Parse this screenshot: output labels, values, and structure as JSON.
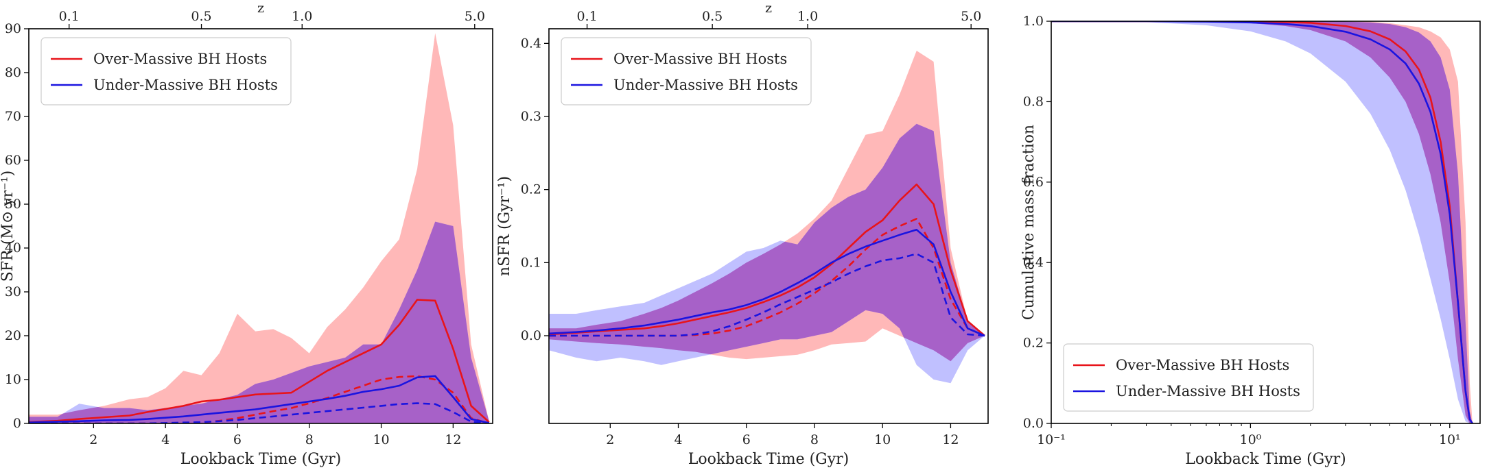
{
  "colors": {
    "over": "#e8141a",
    "under": "#1a14e0",
    "over_band": "#ff9d9d",
    "under_band": "#a8a8ff",
    "overlap_band": "#a761c8"
  },
  "chart_data": [
    {
      "type": "line",
      "title": "",
      "xlabel": "Lookback Time (Gyr)",
      "ylabel": "SFR (M⊙ yr⁻¹)",
      "top_axis_label": "z",
      "xlim": [
        0.2,
        13.1
      ],
      "ylim": [
        0,
        90
      ],
      "xticks": [
        2,
        4,
        6,
        8,
        10,
        12
      ],
      "xtick_labels": [
        "2",
        "4",
        "6",
        "8",
        "10",
        "12"
      ],
      "yticks": [
        0,
        10,
        20,
        30,
        40,
        50,
        60,
        70,
        80,
        90
      ],
      "ytick_labels": [
        "0",
        "10",
        "20",
        "30",
        "40",
        "50",
        "60",
        "70",
        "80",
        "90"
      ],
      "top_ticks": [
        1.32,
        5.0,
        7.8,
        12.6
      ],
      "top_tick_labels": [
        "0.1",
        "0.5",
        "1.0",
        "5.0"
      ],
      "legend": [
        "Over-Massive BH Hosts",
        "Under-Massive BH Hosts"
      ],
      "legend_position": "top-left",
      "x": [
        0.2,
        1.0,
        1.6,
        2.3,
        3.0,
        3.5,
        4.0,
        4.5,
        5.0,
        5.5,
        6.0,
        6.5,
        7.0,
        7.5,
        8.0,
        8.5,
        9.0,
        9.5,
        10.0,
        10.5,
        11.0,
        11.5,
        12.0,
        12.5,
        13.0
      ],
      "series": [
        {
          "name": "Over-Massive BH Hosts",
          "style": "solid",
          "color_key": "over",
          "values": [
            0.3,
            0.6,
            1.0,
            1.4,
            1.8,
            2.6,
            3.3,
            4.0,
            5.0,
            5.4,
            6.0,
            6.6,
            6.8,
            7.0,
            9.5,
            12.0,
            14.0,
            16.0,
            18.0,
            22.5,
            28.2,
            28.0,
            17.0,
            4.0,
            0.3
          ]
        },
        {
          "name": "Over-Massive median (dashed)",
          "style": "dashed",
          "color_key": "over",
          "values": [
            0.0,
            0.0,
            0.0,
            0.0,
            0.0,
            0.0,
            0.0,
            0.0,
            0.2,
            0.6,
            1.2,
            2.0,
            2.8,
            3.5,
            4.6,
            5.8,
            7.2,
            8.6,
            10.0,
            10.6,
            10.8,
            10.0,
            7.0,
            1.2,
            0.0
          ]
        },
        {
          "name": "Under-Massive BH Hosts",
          "style": "solid",
          "color_key": "under",
          "values": [
            0.2,
            0.4,
            0.5,
            0.7,
            0.8,
            1.0,
            1.3,
            1.6,
            2.0,
            2.4,
            2.8,
            3.2,
            3.8,
            4.4,
            5.0,
            5.6,
            6.3,
            7.2,
            7.8,
            8.6,
            10.5,
            10.8,
            6.0,
            1.0,
            0.1
          ]
        },
        {
          "name": "Under-Massive median (dashed)",
          "style": "dashed",
          "color_key": "under",
          "values": [
            0.0,
            0.0,
            0.0,
            0.0,
            0.0,
            0.0,
            0.1,
            0.2,
            0.3,
            0.5,
            0.8,
            1.2,
            1.6,
            2.0,
            2.4,
            2.8,
            3.2,
            3.6,
            4.0,
            4.4,
            4.6,
            4.4,
            2.6,
            0.4,
            0.0
          ]
        }
      ],
      "bands": [
        {
          "name": "Over-Massive BH Hosts range",
          "color_key": "over_band",
          "upper": [
            2.0,
            2.0,
            3.0,
            4.0,
            5.5,
            6.0,
            8.0,
            12.0,
            11.0,
            16.0,
            25.0,
            21.0,
            21.5,
            19.5,
            16.0,
            22.0,
            26.0,
            31.0,
            37.0,
            42.0,
            58.0,
            89.0,
            68.0,
            18.0,
            0.5
          ],
          "lower": [
            0.0,
            0.0,
            0.0,
            0.0,
            0.0,
            0.0,
            0.0,
            0.0,
            0.0,
            0.0,
            0.0,
            0.0,
            0.0,
            0.0,
            0.0,
            0.0,
            0.0,
            0.0,
            0.0,
            0.0,
            0.0,
            0.0,
            0.0,
            0.0,
            0.0
          ]
        },
        {
          "name": "Under-Massive BH Hosts range",
          "color_key": "under_band",
          "upper": [
            1.5,
            1.5,
            4.5,
            3.5,
            3.5,
            3.0,
            3.5,
            4.0,
            4.5,
            5.5,
            6.5,
            9.0,
            10.0,
            11.5,
            13.0,
            14.0,
            15.0,
            18.0,
            18.0,
            26.0,
            35.0,
            46.0,
            45.0,
            15.0,
            0.5
          ],
          "lower": [
            0.0,
            0.0,
            0.0,
            0.0,
            0.0,
            0.0,
            0.0,
            0.0,
            0.0,
            0.0,
            0.0,
            0.0,
            0.0,
            0.0,
            0.0,
            0.0,
            0.0,
            0.0,
            0.0,
            0.0,
            0.0,
            0.0,
            0.0,
            0.0,
            0.0
          ]
        }
      ]
    },
    {
      "type": "line",
      "title": "",
      "xlabel": "Lookback Time (Gyr)",
      "ylabel": "nSFR (Gyr⁻¹)",
      "top_axis_label": "z",
      "xlim": [
        0.2,
        13.1
      ],
      "ylim": [
        -0.12,
        0.42
      ],
      "xticks": [
        2,
        4,
        6,
        8,
        10,
        12
      ],
      "xtick_labels": [
        "2",
        "4",
        "6",
        "8",
        "10",
        "12"
      ],
      "yticks": [
        0.0,
        0.1,
        0.2,
        0.3,
        0.4
      ],
      "ytick_labels": [
        "0.0",
        "0.1",
        "0.2",
        "0.3",
        "0.4"
      ],
      "top_ticks": [
        1.32,
        5.0,
        7.8,
        12.6
      ],
      "top_tick_labels": [
        "0.1",
        "0.5",
        "1.0",
        "5.0"
      ],
      "legend": [
        "Over-Massive BH Hosts",
        "Under-Massive BH Hosts"
      ],
      "legend_position": "top-left",
      "x": [
        0.2,
        1.0,
        1.6,
        2.3,
        3.0,
        3.5,
        4.0,
        4.5,
        5.0,
        5.5,
        6.0,
        6.5,
        7.0,
        7.5,
        8.0,
        8.5,
        9.0,
        9.5,
        10.0,
        10.5,
        11.0,
        11.5,
        12.0,
        12.5,
        13.0
      ],
      "series": [
        {
          "name": "Over-Massive BH Hosts",
          "style": "solid",
          "color_key": "over",
          "values": [
            0.002,
            0.004,
            0.006,
            0.008,
            0.01,
            0.013,
            0.017,
            0.022,
            0.027,
            0.032,
            0.038,
            0.046,
            0.055,
            0.066,
            0.08,
            0.098,
            0.12,
            0.142,
            0.158,
            0.185,
            0.207,
            0.18,
            0.09,
            0.02,
            0.0
          ]
        },
        {
          "name": "Over-Massive median (dashed)",
          "style": "dashed",
          "color_key": "over",
          "values": [
            0.0,
            0.0,
            0.0,
            0.0,
            0.0,
            0.0,
            0.0,
            0.001,
            0.003,
            0.007,
            0.013,
            0.022,
            0.032,
            0.044,
            0.058,
            0.075,
            0.095,
            0.118,
            0.138,
            0.15,
            0.16,
            0.12,
            0.05,
            0.01,
            0.0
          ]
        },
        {
          "name": "Under-Massive BH Hosts",
          "style": "solid",
          "color_key": "under",
          "values": [
            0.003,
            0.005,
            0.007,
            0.01,
            0.014,
            0.018,
            0.022,
            0.027,
            0.032,
            0.036,
            0.042,
            0.05,
            0.06,
            0.072,
            0.085,
            0.1,
            0.112,
            0.122,
            0.13,
            0.138,
            0.145,
            0.125,
            0.06,
            0.01,
            0.0
          ]
        },
        {
          "name": "Under-Massive median (dashed)",
          "style": "dashed",
          "color_key": "under",
          "values": [
            0.0,
            0.0,
            0.0,
            0.0,
            0.0,
            0.0,
            0.0,
            0.002,
            0.006,
            0.013,
            0.022,
            0.032,
            0.043,
            0.053,
            0.063,
            0.073,
            0.085,
            0.095,
            0.103,
            0.106,
            0.112,
            0.1,
            0.025,
            0.002,
            0.0
          ]
        }
      ],
      "bands": [
        {
          "name": "Over-Massive BH Hosts range",
          "color_key": "over_band",
          "upper": [
            0.01,
            0.01,
            0.015,
            0.02,
            0.03,
            0.038,
            0.048,
            0.06,
            0.072,
            0.085,
            0.1,
            0.112,
            0.125,
            0.14,
            0.16,
            0.185,
            0.23,
            0.275,
            0.28,
            0.33,
            0.39,
            0.375,
            0.12,
            0.02,
            0.0
          ],
          "lower": [
            -0.005,
            -0.008,
            -0.01,
            -0.012,
            -0.015,
            -0.017,
            -0.02,
            -0.022,
            -0.026,
            -0.03,
            -0.032,
            -0.03,
            -0.028,
            -0.026,
            -0.02,
            -0.012,
            -0.01,
            -0.008,
            0.01,
            0.0,
            -0.01,
            -0.02,
            -0.035,
            -0.01,
            0.0
          ]
        },
        {
          "name": "Under-Massive BH Hosts range",
          "color_key": "under_band",
          "upper": [
            0.03,
            0.03,
            0.035,
            0.04,
            0.045,
            0.055,
            0.065,
            0.075,
            0.085,
            0.1,
            0.115,
            0.12,
            0.13,
            0.125,
            0.155,
            0.175,
            0.19,
            0.2,
            0.23,
            0.27,
            0.29,
            0.28,
            0.1,
            0.02,
            0.0
          ],
          "lower": [
            -0.02,
            -0.03,
            -0.035,
            -0.03,
            -0.035,
            -0.04,
            -0.035,
            -0.03,
            -0.025,
            -0.02,
            -0.015,
            -0.01,
            -0.005,
            -0.005,
            0.0,
            0.005,
            0.02,
            0.035,
            0.03,
            0.01,
            -0.04,
            -0.06,
            -0.065,
            -0.02,
            0.0
          ]
        }
      ]
    },
    {
      "type": "line",
      "title": "",
      "xlabel": "Lookback Time (Gyr)",
      "ylabel": "Cumulative mass fraction",
      "xscale": "log",
      "xlim": [
        0.1,
        14.2
      ],
      "ylim": [
        0.0,
        1.0
      ],
      "xticks": [
        0.1,
        1,
        10
      ],
      "xtick_labels": [
        "10⁻¹",
        "10⁰",
        "10¹"
      ],
      "yticks": [
        0.0,
        0.2,
        0.4,
        0.6,
        0.8,
        1.0
      ],
      "ytick_labels": [
        "0.0",
        "0.2",
        "0.4",
        "0.6",
        "0.8",
        "1.0"
      ],
      "legend": [
        "Over-Massive BH Hosts",
        "Under-Massive BH Hosts"
      ],
      "legend_position": "bottom-left",
      "x": [
        0.1,
        0.3,
        0.6,
        1.0,
        1.5,
        2.0,
        3.0,
        4.0,
        5.0,
        6.0,
        7.0,
        8.0,
        9.0,
        10.0,
        11.0,
        12.0,
        12.6,
        13.0
      ],
      "series": [
        {
          "name": "Over-Massive BH Hosts",
          "style": "solid",
          "color_key": "over",
          "values": [
            1.0,
            1.0,
            1.0,
            0.999,
            0.998,
            0.996,
            0.988,
            0.975,
            0.955,
            0.925,
            0.88,
            0.81,
            0.7,
            0.54,
            0.3,
            0.08,
            0.01,
            0.0
          ]
        },
        {
          "name": "Under-Massive BH Hosts",
          "style": "solid",
          "color_key": "under",
          "values": [
            1.0,
            1.0,
            0.999,
            0.997,
            0.993,
            0.988,
            0.974,
            0.955,
            0.93,
            0.895,
            0.845,
            0.775,
            0.67,
            0.52,
            0.3,
            0.08,
            0.01,
            0.0
          ]
        }
      ],
      "bands": [
        {
          "name": "Over-Massive BH Hosts range",
          "color_key": "over_band",
          "upper": [
            1.0,
            1.0,
            1.0,
            1.0,
            1.0,
            1.0,
            1.0,
            0.999,
            0.995,
            0.99,
            0.985,
            0.975,
            0.96,
            0.93,
            0.85,
            0.5,
            0.1,
            0.0
          ],
          "lower": [
            1.0,
            1.0,
            0.999,
            0.995,
            0.988,
            0.978,
            0.95,
            0.91,
            0.86,
            0.8,
            0.72,
            0.62,
            0.5,
            0.35,
            0.16,
            0.02,
            0.0,
            0.0
          ]
        },
        {
          "name": "Under-Massive BH Hosts range",
          "color_key": "under_band",
          "upper": [
            1.0,
            1.0,
            1.0,
            1.0,
            1.0,
            1.0,
            0.999,
            0.997,
            0.993,
            0.985,
            0.972,
            0.95,
            0.91,
            0.83,
            0.62,
            0.25,
            0.03,
            0.0
          ],
          "lower": [
            1.0,
            0.998,
            0.99,
            0.975,
            0.95,
            0.92,
            0.85,
            0.77,
            0.68,
            0.58,
            0.47,
            0.36,
            0.26,
            0.16,
            0.06,
            0.005,
            0.0,
            0.0
          ]
        }
      ]
    }
  ]
}
